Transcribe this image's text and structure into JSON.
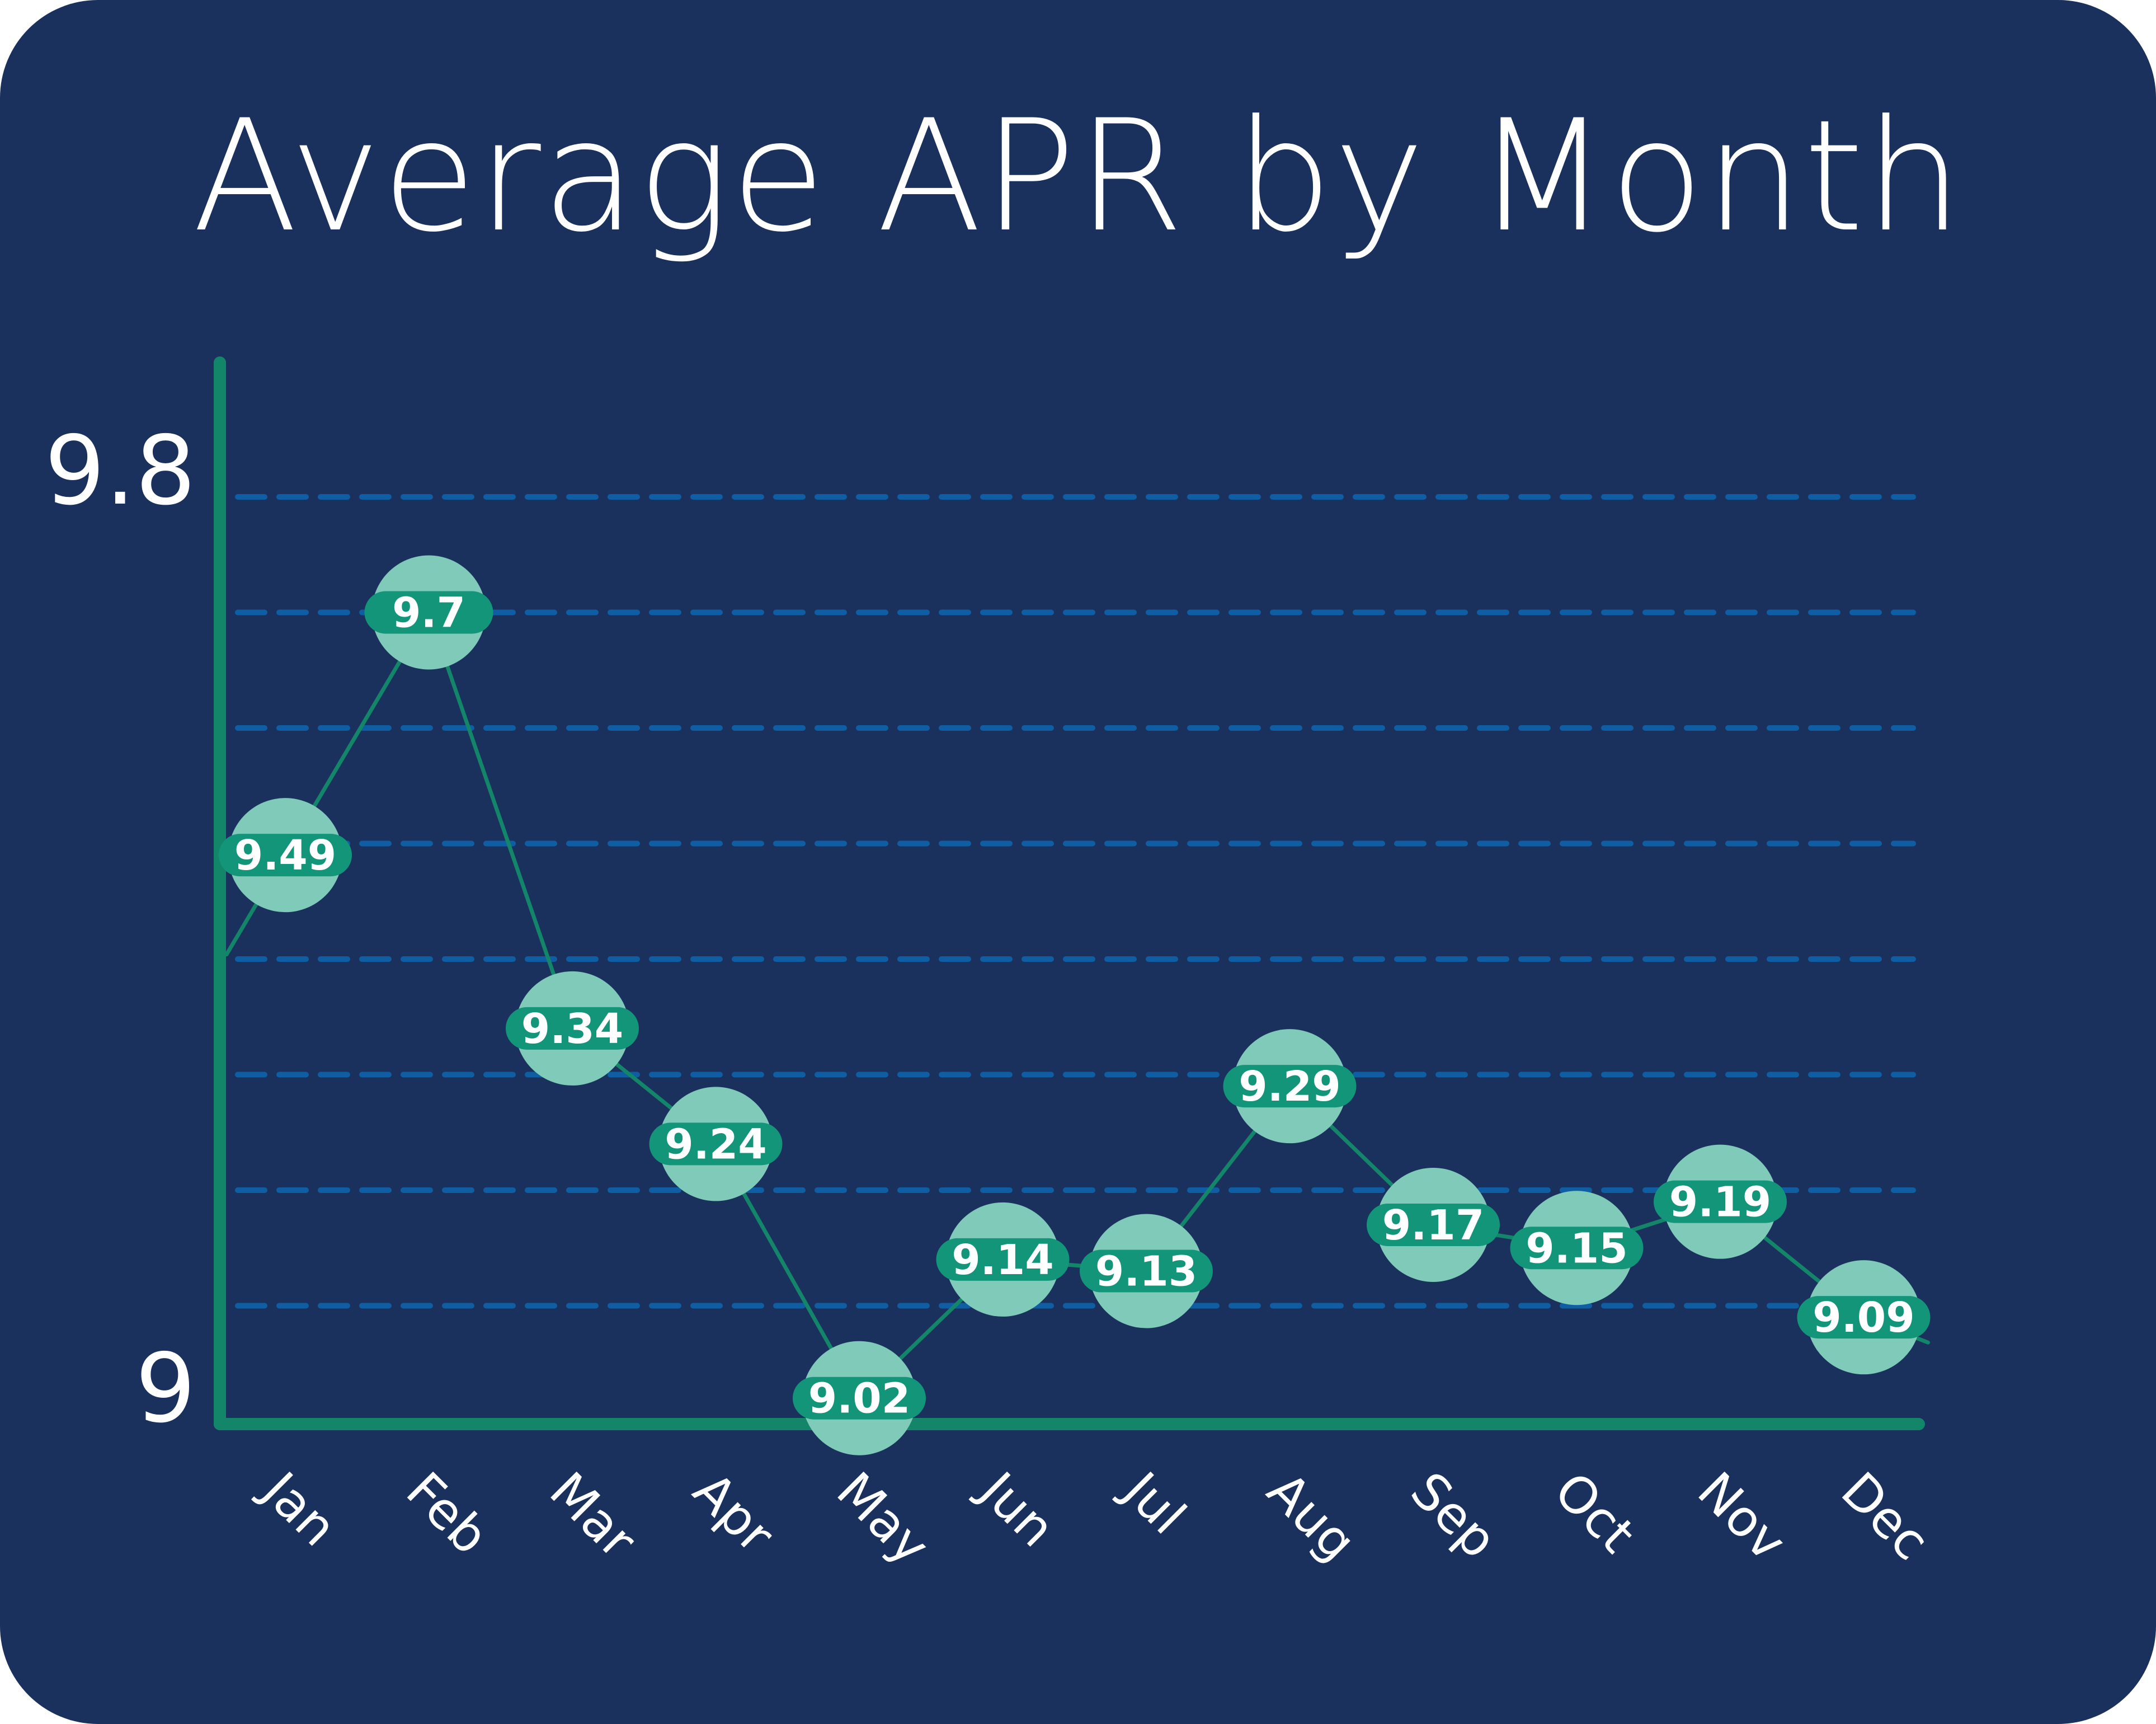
{
  "colors": {
    "background": "#1b315d",
    "axis": "#13866a",
    "line": "#13866a",
    "marker_fill": "#7fcab9",
    "label_badge": "#13957a",
    "grid": "#0f5ea4",
    "text": "#ffffff"
  },
  "chart_data": {
    "type": "line",
    "title": "Average APR by Month",
    "xlabel": "",
    "ylabel": "",
    "categories": [
      "Jan",
      "Feb",
      "Mar",
      "Apr",
      "May",
      "Jun",
      "Jul",
      "Aug",
      "Sep",
      "Oct",
      "Nov",
      "Dec"
    ],
    "values": [
      9.49,
      9.7,
      9.34,
      9.24,
      9.02,
      9.14,
      9.13,
      9.29,
      9.17,
      9.15,
      9.19,
      9.09
    ],
    "data_labels": [
      "9.49",
      "9.7",
      "9.34",
      "9.24",
      "9.02",
      "9.14",
      "9.13",
      "9.29",
      "9.17",
      "9.15",
      "9.19",
      "9.09"
    ],
    "ylim": [
      9,
      9.8
    ],
    "y_tick_labels": [
      "9",
      "9.8"
    ],
    "grid": true,
    "grid_style": "dashed horizontal",
    "legend": false
  }
}
